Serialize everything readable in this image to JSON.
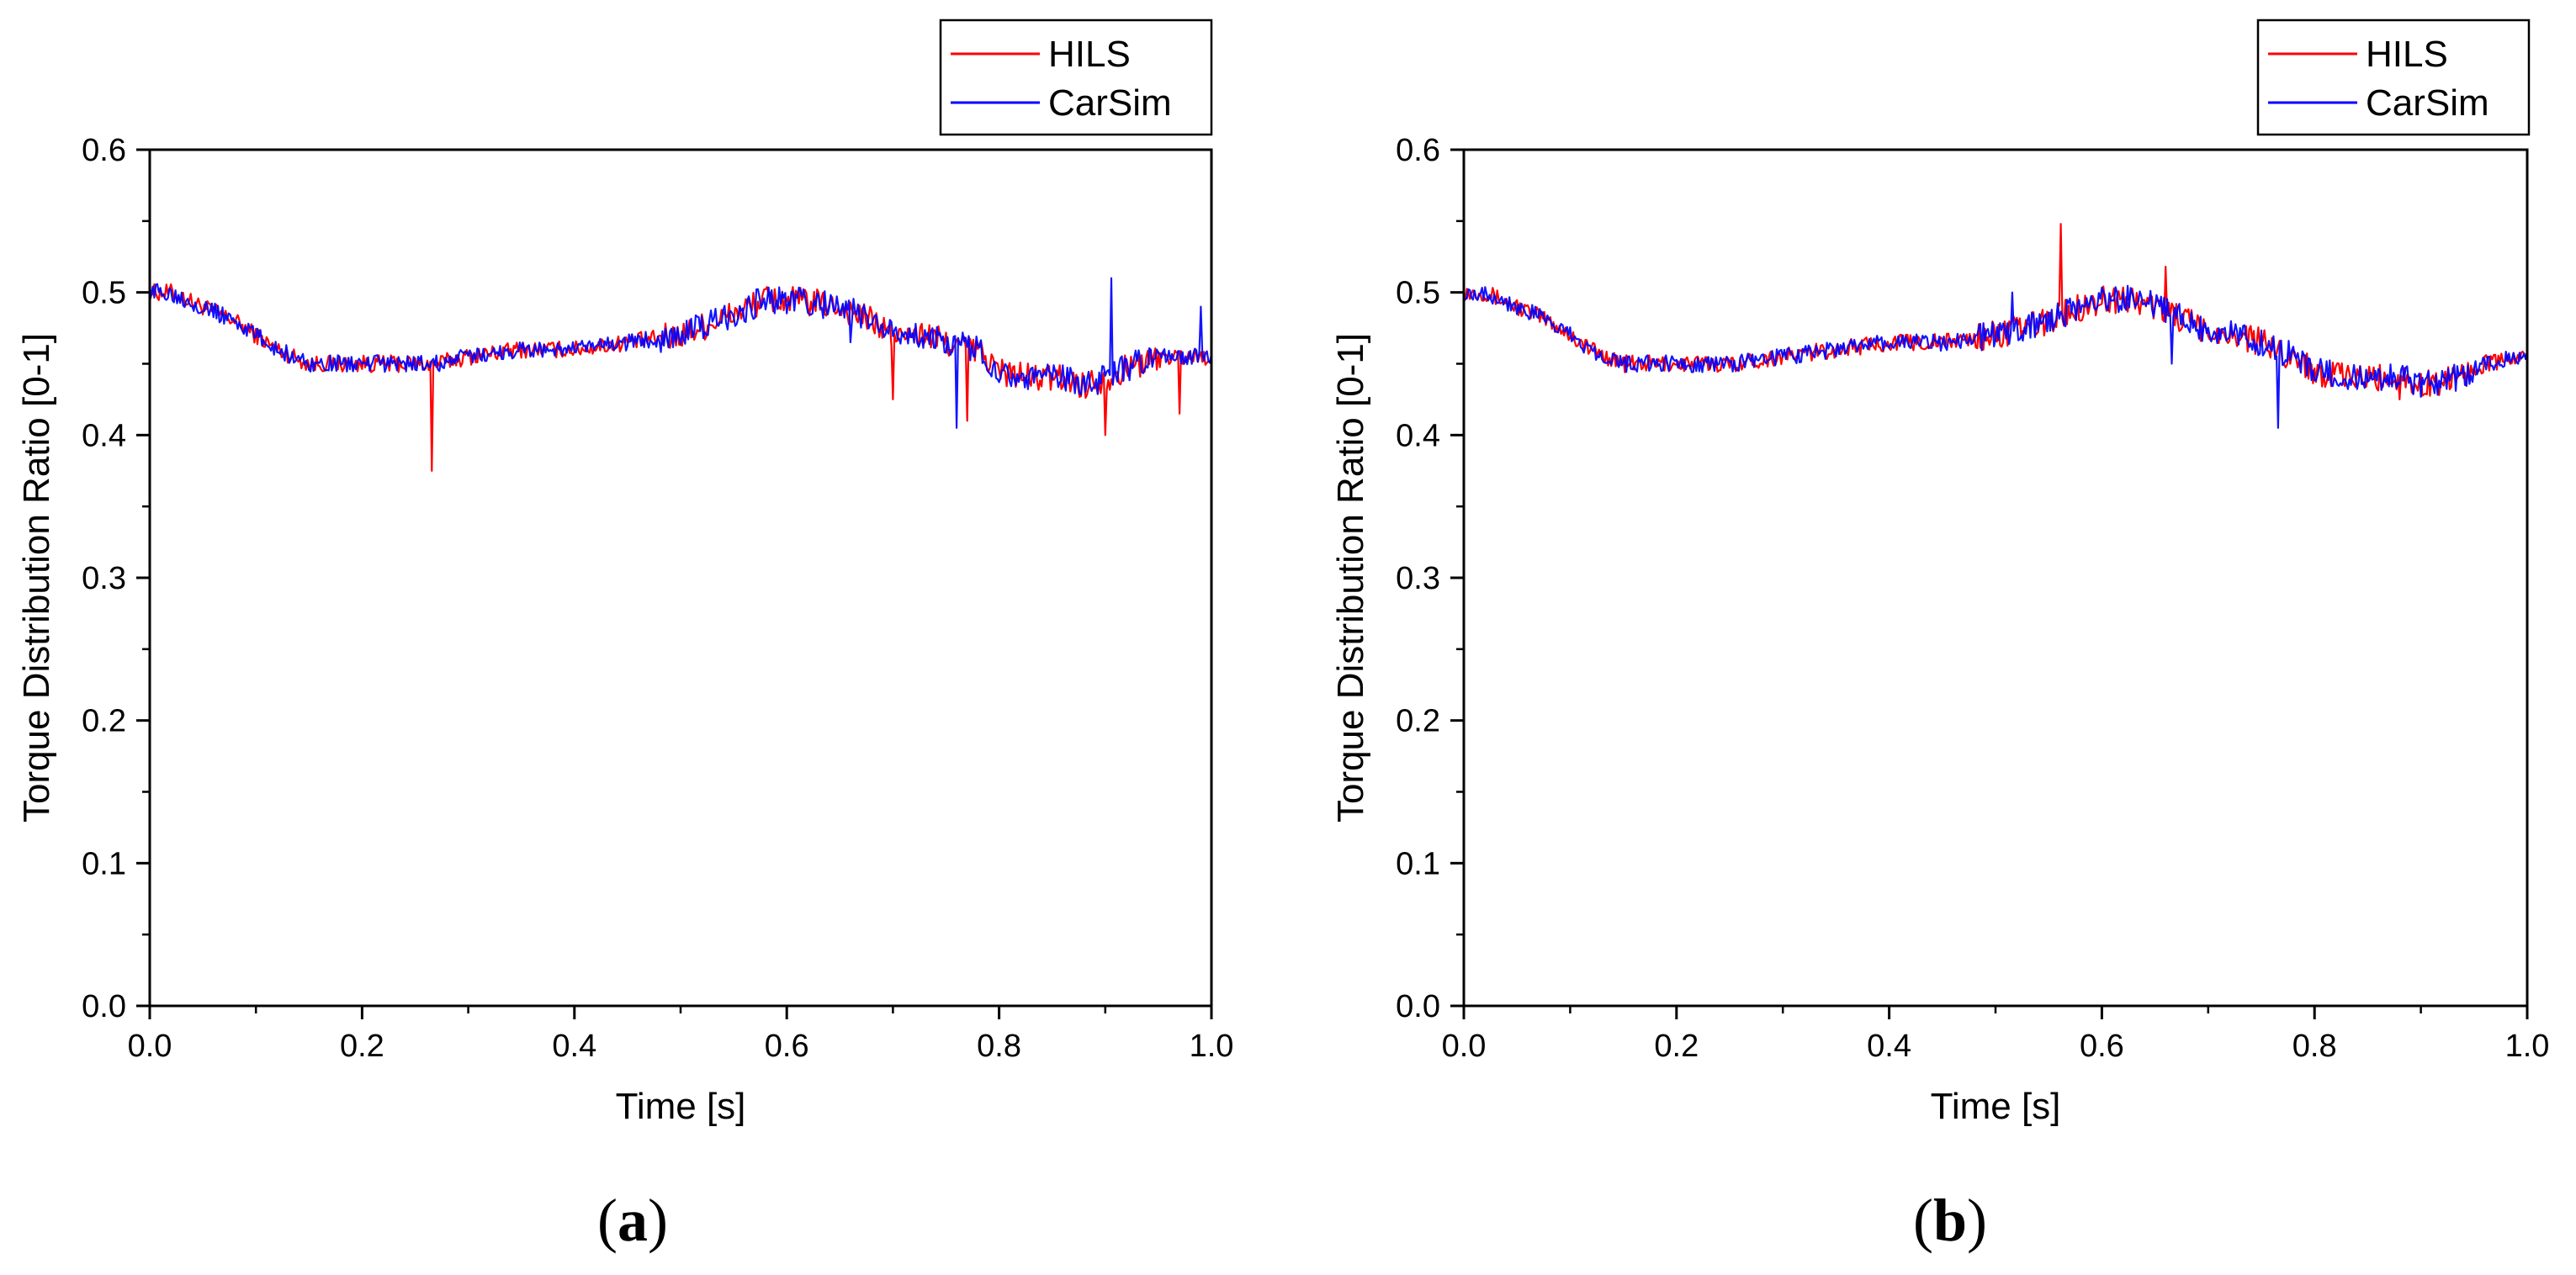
{
  "figure": {
    "panels": [
      {
        "caption_open": "(",
        "caption_letter": "a",
        "caption_close": ")"
      },
      {
        "caption_open": "(",
        "caption_letter": "b",
        "caption_close": ")"
      }
    ]
  },
  "chart_data": [
    {
      "type": "line",
      "title": "",
      "xlabel": "Time [s]",
      "ylabel": "Torque Distribution Ratio [0-1]",
      "xlim": [
        0.0,
        1.0
      ],
      "ylim": [
        0.0,
        0.6
      ],
      "xticks": [
        "0.0",
        "0.2",
        "0.4",
        "0.6",
        "0.8",
        "1.0"
      ],
      "yticks": [
        "0.0",
        "0.1",
        "0.2",
        "0.3",
        "0.4",
        "0.5",
        "0.6"
      ],
      "legend_position": "top-right, above plot",
      "series": [
        {
          "name": "HILS",
          "color": "#ff0000",
          "x": [
            0.0,
            0.02,
            0.05,
            0.08,
            0.1,
            0.12,
            0.15,
            0.18,
            0.2,
            0.25,
            0.27,
            0.3,
            0.35,
            0.4,
            0.45,
            0.5,
            0.55,
            0.58,
            0.6,
            0.65,
            0.68,
            0.7,
            0.73,
            0.75,
            0.78,
            0.8,
            0.83,
            0.86,
            0.88,
            0.9,
            0.93,
            0.96,
            1.0
          ],
          "y": [
            0.5,
            0.5,
            0.49,
            0.48,
            0.47,
            0.46,
            0.45,
            0.45,
            0.45,
            0.45,
            0.45,
            0.455,
            0.46,
            0.46,
            0.465,
            0.47,
            0.485,
            0.495,
            0.495,
            0.49,
            0.48,
            0.47,
            0.47,
            0.465,
            0.46,
            0.445,
            0.44,
            0.44,
            0.435,
            0.44,
            0.45,
            0.455,
            0.455
          ],
          "spikes": [
            [
              0.265,
              0.375
            ],
            [
              0.7,
              0.425
            ],
            [
              0.77,
              0.41
            ],
            [
              0.9,
              0.4
            ],
            [
              0.97,
              0.415
            ]
          ]
        },
        {
          "name": "CarSim",
          "color": "#0000ff",
          "x": [
            0.0,
            0.02,
            0.05,
            0.08,
            0.1,
            0.12,
            0.15,
            0.18,
            0.2,
            0.25,
            0.27,
            0.3,
            0.35,
            0.4,
            0.45,
            0.5,
            0.55,
            0.58,
            0.6,
            0.65,
            0.68,
            0.7,
            0.73,
            0.75,
            0.78,
            0.8,
            0.83,
            0.86,
            0.88,
            0.9,
            0.93,
            0.96,
            1.0
          ],
          "y": [
            0.5,
            0.5,
            0.49,
            0.48,
            0.47,
            0.46,
            0.45,
            0.45,
            0.45,
            0.45,
            0.45,
            0.455,
            0.46,
            0.46,
            0.465,
            0.47,
            0.485,
            0.495,
            0.495,
            0.49,
            0.48,
            0.47,
            0.47,
            0.465,
            0.46,
            0.445,
            0.44,
            0.44,
            0.435,
            0.44,
            0.45,
            0.455,
            0.455
          ],
          "spikes": [
            [
              0.66,
              0.465
            ],
            [
              0.76,
              0.405
            ],
            [
              0.905,
              0.51
            ],
            [
              0.99,
              0.49
            ]
          ]
        }
      ]
    },
    {
      "type": "line",
      "title": "",
      "xlabel": "Time [s]",
      "ylabel": "Torque Distribution Ratio [0-1]",
      "xlim": [
        0.0,
        1.0
      ],
      "ylim": [
        0.0,
        0.6
      ],
      "xticks": [
        "0.0",
        "0.2",
        "0.4",
        "0.6",
        "0.8",
        "1.0"
      ],
      "yticks": [
        "0.0",
        "0.1",
        "0.2",
        "0.3",
        "0.4",
        "0.5",
        "0.6"
      ],
      "legend_position": "top-right, above plot",
      "series": [
        {
          "name": "HILS",
          "color": "#ff0000",
          "x": [
            0.0,
            0.02,
            0.05,
            0.08,
            0.1,
            0.12,
            0.15,
            0.18,
            0.2,
            0.25,
            0.3,
            0.35,
            0.4,
            0.45,
            0.5,
            0.55,
            0.58,
            0.6,
            0.63,
            0.65,
            0.68,
            0.7,
            0.73,
            0.75,
            0.78,
            0.8,
            0.83,
            0.86,
            0.88,
            0.9,
            0.93,
            0.96,
            1.0
          ],
          "y": [
            0.5,
            0.5,
            0.49,
            0.48,
            0.47,
            0.46,
            0.45,
            0.45,
            0.45,
            0.45,
            0.455,
            0.46,
            0.465,
            0.465,
            0.47,
            0.48,
            0.49,
            0.495,
            0.495,
            0.49,
            0.48,
            0.47,
            0.47,
            0.465,
            0.455,
            0.445,
            0.44,
            0.44,
            0.44,
            0.435,
            0.44,
            0.45,
            0.455
          ],
          "spikes": [
            [
              0.562,
              0.548
            ],
            [
              0.66,
              0.518
            ],
            [
              0.88,
              0.425
            ]
          ]
        },
        {
          "name": "CarSim",
          "color": "#0000ff",
          "x": [
            0.0,
            0.02,
            0.05,
            0.08,
            0.1,
            0.12,
            0.15,
            0.18,
            0.2,
            0.25,
            0.3,
            0.35,
            0.4,
            0.45,
            0.5,
            0.55,
            0.58,
            0.6,
            0.63,
            0.65,
            0.68,
            0.7,
            0.73,
            0.75,
            0.78,
            0.8,
            0.83,
            0.86,
            0.88,
            0.9,
            0.93,
            0.96,
            1.0
          ],
          "y": [
            0.5,
            0.5,
            0.49,
            0.48,
            0.47,
            0.46,
            0.45,
            0.45,
            0.45,
            0.45,
            0.455,
            0.46,
            0.465,
            0.465,
            0.47,
            0.48,
            0.49,
            0.495,
            0.495,
            0.49,
            0.48,
            0.47,
            0.47,
            0.465,
            0.455,
            0.445,
            0.44,
            0.44,
            0.44,
            0.435,
            0.44,
            0.45,
            0.455
          ],
          "spikes": [
            [
              0.515,
              0.5
            ],
            [
              0.665,
              0.45
            ],
            [
              0.765,
              0.405
            ]
          ]
        }
      ]
    }
  ]
}
